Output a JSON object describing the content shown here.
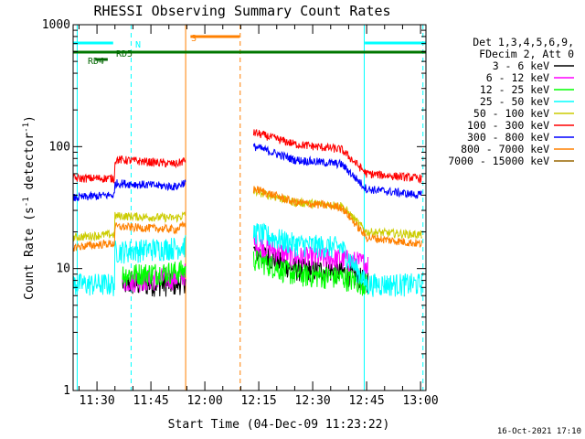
{
  "chart_data": {
    "type": "line",
    "title": "RHESSI Observing Summary Count Rates",
    "xlabel": "Start Time (04-Dec-09 11:23:22)",
    "ylabel": "Count Rate (s⁻¹ detector⁻¹)",
    "ylabel_parts": [
      "Count Rate (s",
      "-1",
      " detector",
      "-1",
      ")"
    ],
    "y_scale": "log",
    "ylim": [
      1,
      1000
    ],
    "xlim": [
      "11:23:22",
      "13:01:30"
    ],
    "x_ticks": [
      "11:30",
      "11:45",
      "12:00",
      "12:15",
      "12:30",
      "12:45",
      "13:00"
    ],
    "y_ticks": [
      "1",
      "10",
      "100",
      "1000"
    ],
    "legend_header": [
      "Det 1,3,4,5,6,9,",
      "FDecim 2, Att 0"
    ],
    "legend_position": "right",
    "timestamp": "16-Oct-2021 17:10",
    "series": [
      {
        "name": "3 - 6 keV",
        "color": "#000000",
        "points": [
          [
            "11:23:22",
            null
          ],
          [
            "11:37:00",
            7.5
          ],
          [
            "11:52:00",
            7.5
          ],
          [
            "12:14:00",
            14
          ],
          [
            "12:25:00",
            10
          ],
          [
            "12:38:00",
            9.5
          ],
          [
            "12:45:00",
            8
          ]
        ]
      },
      {
        "name": "6 - 12 keV",
        "color": "#ff00ff",
        "points": [
          [
            "11:23:22",
            null
          ],
          [
            "11:37:00",
            8
          ],
          [
            "11:52:00",
            8.5
          ],
          [
            "12:14:00",
            16
          ],
          [
            "12:25:00",
            12.5
          ],
          [
            "12:38:00",
            12
          ],
          [
            "12:45:00",
            11
          ]
        ]
      },
      {
        "name": "12 - 25 keV",
        "color": "#00ff00",
        "points": [
          [
            "11:23:22",
            null
          ],
          [
            "11:37:00",
            9
          ],
          [
            "11:52:00",
            9.5
          ],
          [
            "12:14:00",
            12
          ],
          [
            "12:25:00",
            9
          ],
          [
            "12:38:00",
            8.5
          ],
          [
            "12:45:00",
            7.5
          ]
        ]
      },
      {
        "name": "25 - 50 keV",
        "color": "#00ffff",
        "points": [
          [
            "11:23:22",
            7.5
          ],
          [
            "11:33:00",
            7.5
          ],
          [
            "11:37:00",
            14
          ],
          [
            "11:52:00",
            15
          ],
          [
            "12:14:00",
            20
          ],
          [
            "12:25:00",
            16
          ],
          [
            "12:38:00",
            15
          ],
          [
            "12:45:00",
            7.5
          ],
          [
            "13:00:00",
            7.5
          ]
        ]
      },
      {
        "name": "50 - 100 keV",
        "color": "#cccc00",
        "points": [
          [
            "11:23:22",
            18
          ],
          [
            "11:33:00",
            19
          ],
          [
            "11:37:00",
            27
          ],
          [
            "11:52:00",
            26
          ],
          [
            "12:14:00",
            43
          ],
          [
            "12:25:00",
            35
          ],
          [
            "12:38:00",
            33
          ],
          [
            "12:45:00",
            20
          ],
          [
            "13:00:00",
            19
          ]
        ]
      },
      {
        "name": "100 - 300 keV",
        "color": "#ff0000",
        "points": [
          [
            "11:23:22",
            55
          ],
          [
            "11:33:00",
            55
          ],
          [
            "11:37:00",
            78
          ],
          [
            "11:52:00",
            72
          ],
          [
            "12:14:00",
            130
          ],
          [
            "12:25:00",
            105
          ],
          [
            "12:38:00",
            95
          ],
          [
            "12:45:00",
            60
          ],
          [
            "13:00:00",
            55
          ]
        ]
      },
      {
        "name": "300 - 800 keV",
        "color": "#0000ff",
        "points": [
          [
            "11:23:22",
            38
          ],
          [
            "11:33:00",
            40
          ],
          [
            "11:37:00",
            50
          ],
          [
            "11:52:00",
            47
          ],
          [
            "12:14:00",
            100
          ],
          [
            "12:25:00",
            78
          ],
          [
            "12:38:00",
            72
          ],
          [
            "12:45:00",
            45
          ],
          [
            "13:00:00",
            40
          ]
        ]
      },
      {
        "name": "800 - 7000 keV",
        "color": "#ff8000",
        "points": [
          [
            "11:23:22",
            15
          ],
          [
            "11:33:00",
            16
          ],
          [
            "11:37:00",
            22
          ],
          [
            "11:52:00",
            21
          ],
          [
            "12:14:00",
            45
          ],
          [
            "12:25:00",
            35
          ],
          [
            "12:38:00",
            32
          ],
          [
            "12:45:00",
            18
          ],
          [
            "13:00:00",
            16
          ]
        ]
      },
      {
        "name": "7000 - 15000 keV",
        "color": "#996600",
        "points": []
      }
    ],
    "annotations": [
      {
        "label": "N",
        "color": "#00ffff",
        "type": "flag"
      },
      {
        "label": "S",
        "color": "#ff8000",
        "type": "flag"
      },
      {
        "label": "RD4",
        "color": "#006600",
        "type": "flag"
      },
      {
        "label": "RD5",
        "color": "#006600",
        "type": "flag"
      }
    ]
  }
}
